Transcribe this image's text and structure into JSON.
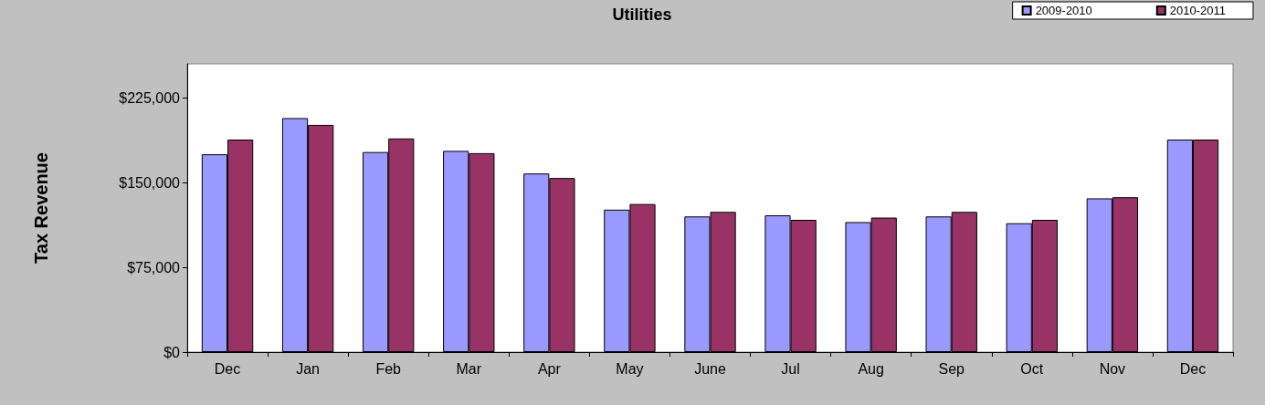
{
  "chart_data": {
    "type": "bar",
    "title": "Utilities",
    "ylabel": "Tax Revenue",
    "categories": [
      "Dec",
      "Jan",
      "Feb",
      "Mar",
      "Apr",
      "May",
      "June",
      "Jul",
      "Aug",
      "Sep",
      "Oct",
      "Nov",
      "Dec"
    ],
    "series": [
      {
        "name": "2009-2010",
        "color": "#9999ff",
        "values": [
          175000,
          207000,
          177000,
          178000,
          158000,
          126000,
          120000,
          121000,
          115000,
          120000,
          114000,
          136000,
          188000
        ]
      },
      {
        "name": "2010-2011",
        "color": "#993366",
        "values": [
          188000,
          201000,
          189000,
          176000,
          154000,
          131000,
          124000,
          117000,
          119000,
          124000,
          117000,
          137000,
          188000
        ]
      }
    ],
    "ylim": [
      0,
      255000
    ],
    "yticks": [
      {
        "value": 0,
        "label": "$0"
      },
      {
        "value": 75000,
        "label": "$75,000"
      },
      {
        "value": 150000,
        "label": "$150,000"
      },
      {
        "value": 225000,
        "label": "$225,000"
      }
    ],
    "grid": false,
    "legend": "top right"
  }
}
